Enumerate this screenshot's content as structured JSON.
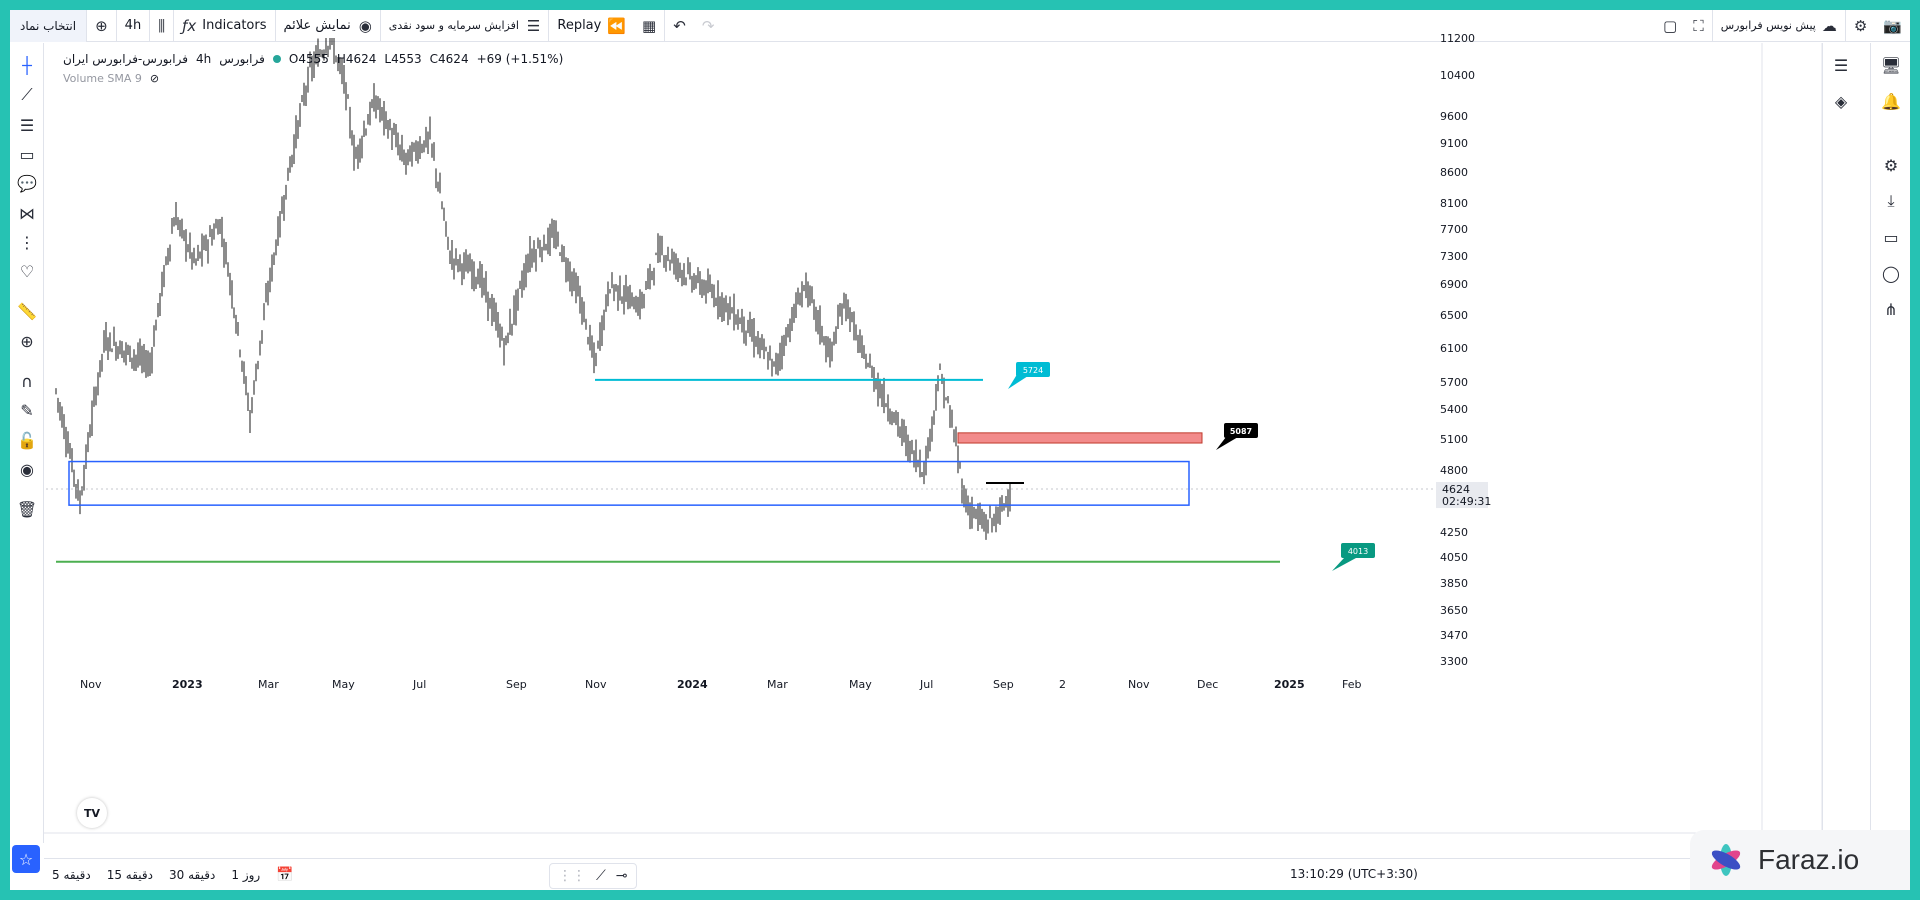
{
  "toolbar": {
    "symbol_search": "انتخاب نماد",
    "interval": "4h",
    "indicators": "Indicators",
    "show_signals": "نمایش علائم",
    "capital_increase": "افزایش سرمایه و سود نقدی",
    "replay": "Replay",
    "pre_buy": "پیش نویس فرابورس"
  },
  "legend": {
    "symbol": "فرابورس-فرابورس ایران",
    "interval": "4h",
    "exchange": "فرابورس",
    "open": "O4555",
    "high": "H4624",
    "low": "L4553",
    "close": "C4624",
    "change": "+69 (+1.51%)",
    "volume": "Volume SMA 9"
  },
  "chart_data": {
    "type": "candlestick",
    "symbol": "فرابورس",
    "interval": "4h",
    "price_axis": [
      "11200",
      "10400",
      "9600",
      "9100",
      "8600",
      "8100",
      "7700",
      "7300",
      "6900",
      "6500",
      "6100",
      "5700",
      "5400",
      "5100",
      "4800",
      "4250",
      "4050",
      "3850",
      "3650",
      "3470",
      "3300"
    ],
    "time_axis": [
      "Nov",
      "2023",
      "Mar",
      "May",
      "Jul",
      "Sep",
      "Nov",
      "2024",
      "Mar",
      "May",
      "Jul",
      "Sep",
      "2",
      "Nov",
      "Dec",
      "2025",
      "Feb"
    ],
    "current_price": "4624",
    "countdown": "02:49:31",
    "ohlc": {
      "open": 4555,
      "high": 4624,
      "low": 4553,
      "close": 4624,
      "change": 69,
      "change_pct": 1.51
    },
    "annotations": [
      {
        "label": "5724",
        "price": 5724,
        "color": "#00bcd4"
      },
      {
        "label": "5087",
        "price": 5087,
        "color": "#000000"
      },
      {
        "label": "4013",
        "price": 4013,
        "color": "#089981"
      }
    ],
    "zones": [
      {
        "kind": "supply",
        "price_from": 5060,
        "price_to": 5160,
        "color": "#f28b8b"
      },
      {
        "kind": "demand",
        "price_from": 4480,
        "price_to": 4880,
        "color": "#2962ff"
      }
    ]
  },
  "bottom": {
    "r_5m_num": "5",
    "r_5m_unit": "دقیقه",
    "r_15m_num": "15",
    "r_15m_unit": "دقیقه",
    "r_30m_num": "30",
    "r_30m_unit": "دقیقه",
    "r_1d_num": "1",
    "r_1d_unit": "روز",
    "clock": "13:10:29 (UTC+3:30)"
  },
  "watermark": "Faraz.io"
}
